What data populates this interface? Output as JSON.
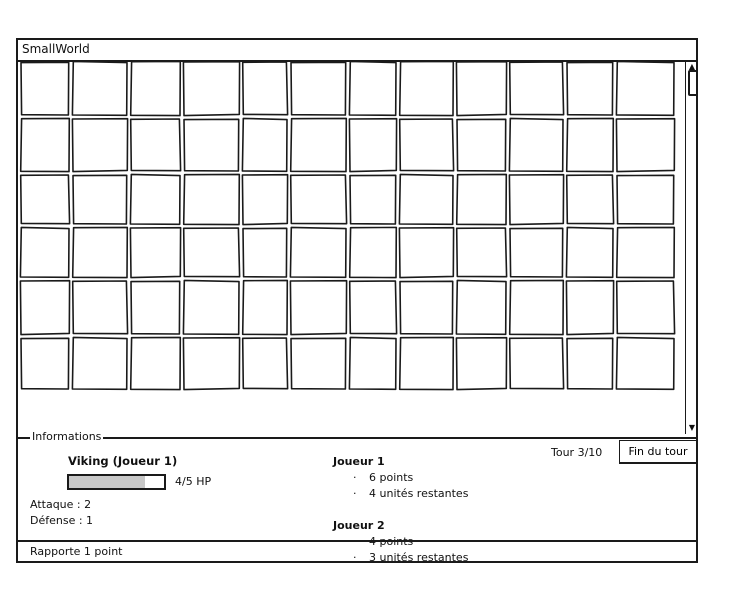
{
  "window": {
    "title": "SmallWorld"
  },
  "map": {
    "rows": 6,
    "columns": 12
  },
  "info": {
    "legend": "Informations",
    "unit": {
      "name": "Viking (Joueur 1)",
      "hp_current": 4,
      "hp_max": 5,
      "hp_text": "4/5 HP",
      "attack": "Attaque : 2",
      "defense": "Défense : 1",
      "reward": "Rapporte 1 point"
    },
    "players": [
      {
        "name": "Joueur 1",
        "lines": [
          "6 points",
          "4 unités restantes"
        ]
      },
      {
        "name": "Joueur 2",
        "lines": [
          "4 points",
          "3 unités restantes"
        ]
      }
    ],
    "bullet": "·",
    "turn": "Tour 3/10",
    "end_turn_label": "Fin du tour"
  },
  "icons": {
    "scroll_up": "▲",
    "scroll_down": "▼"
  }
}
